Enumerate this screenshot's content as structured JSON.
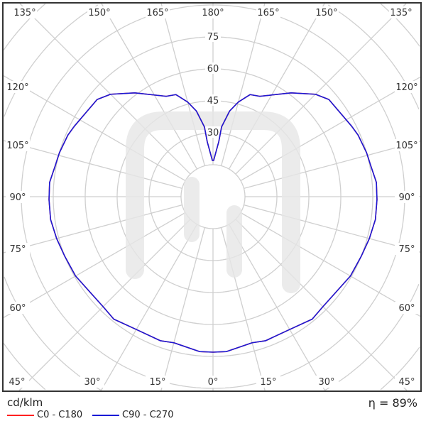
{
  "chart_data": {
    "type": "polar-line",
    "unit_label": "cd/klm",
    "efficiency_label": "η = 89%",
    "radial_ticks": [
      30,
      45,
      60,
      75
    ],
    "radial_grid_step": 15,
    "angle_labels": {
      "top": [
        "135°",
        "150°",
        "165°",
        "180°",
        "165°",
        "150°",
        "135°"
      ],
      "left": [
        "120°",
        "105°",
        "90°",
        "75°",
        "60°"
      ],
      "right": [
        "120°",
        "105°",
        "90°",
        "75°",
        "60°"
      ],
      "bottom": [
        "45°",
        "30°",
        "15°",
        "0°",
        "15°",
        "30°",
        "45°"
      ]
    },
    "gamma_deg": [
      0,
      5,
      15,
      20,
      30,
      39,
      45,
      60,
      68,
      75,
      82,
      89,
      95,
      101,
      106,
      113,
      117,
      130,
      135,
      143,
      155,
      160,
      165,
      169,
      173,
      174,
      179,
      180
    ],
    "series": [
      {
        "name": "C0 - C180",
        "color": "#ff2020",
        "values": [
          73,
          73,
          71,
          72,
          72,
          74,
          73,
          74.5,
          75,
          76,
          77,
          77,
          77,
          75.5,
          75,
          74,
          73,
          71,
          68,
          61,
          52,
          51,
          46,
          41,
          33,
          26,
          17,
          17
        ]
      },
      {
        "name": "C90 - C270",
        "color": "#1a1ad6",
        "values": [
          73,
          73,
          71,
          72,
          72,
          74,
          73,
          74.5,
          75,
          76,
          77,
          77,
          77,
          75.5,
          75,
          74,
          73,
          71,
          68,
          61,
          52,
          51,
          46,
          41,
          33,
          26,
          17,
          17
        ]
      }
    ],
    "grid": true,
    "legend_position": "bottom-left"
  }
}
